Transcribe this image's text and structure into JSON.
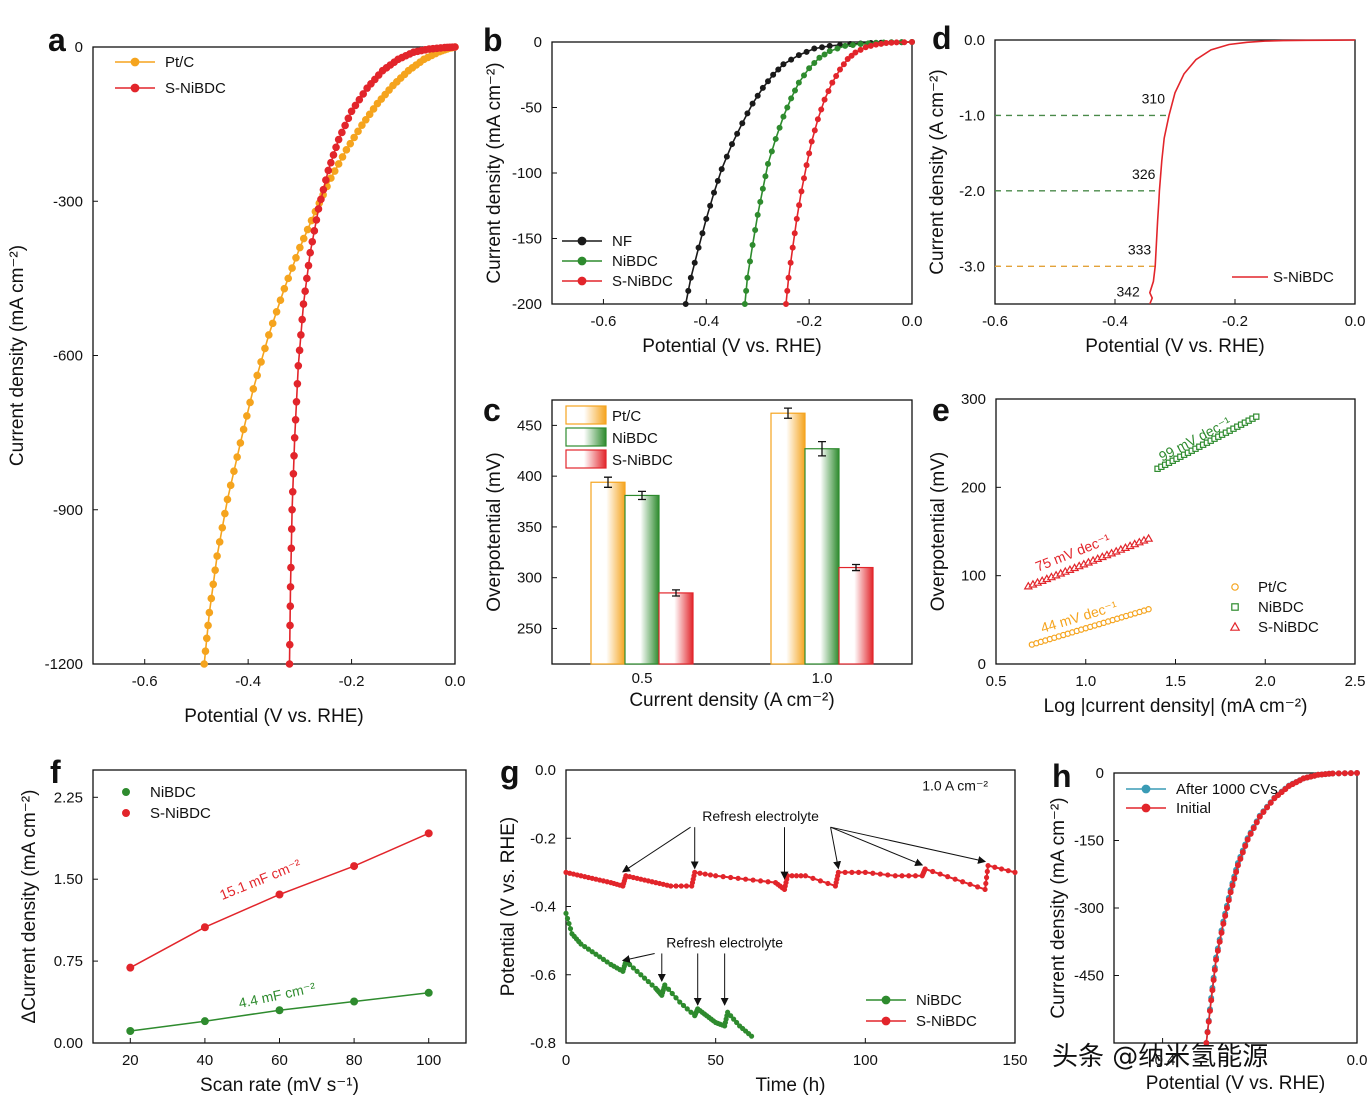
{
  "colors": {
    "ptc": "#f5a41e",
    "nibdc": "#2e8b2e",
    "snibdc": "#e2252b",
    "nf": "#1a1a1a",
    "after": "#3a9bb5",
    "axis": "#111111",
    "dash_green": "#4a8a4a",
    "dash_orange": "#e3a23a"
  },
  "watermark": "头条 @纳米氢能源",
  "chart_data": [
    {
      "id": "a",
      "label": "a",
      "type": "line",
      "xlabel": "Potential (V vs. RHE)",
      "ylabel": "Current density (mA cm⁻²)",
      "xlim": [
        -0.7,
        0.0
      ],
      "ylim": [
        -1200,
        0
      ],
      "xticks": [
        -0.6,
        -0.4,
        -0.2,
        0.0
      ],
      "xtick_labels": [
        "-0.6",
        "-0.4",
        "-0.2",
        "0.0"
      ],
      "yticks": [
        0,
        -300,
        -600,
        -900,
        -1200
      ],
      "ytick_labels": [
        "0",
        "-300",
        "-600",
        "-900",
        "-1200"
      ],
      "legend_position": "top-left",
      "series": [
        {
          "name": "Pt/C",
          "color_key": "ptc",
          "x": [
            -0.485,
            -0.475,
            -0.46,
            -0.44,
            -0.415,
            -0.39,
            -0.36,
            -0.33,
            -0.3,
            -0.27,
            -0.24,
            -0.21,
            -0.18,
            -0.15,
            -0.12,
            -0.09,
            -0.06,
            -0.03,
            -0.01,
            0.0
          ],
          "y": [
            -1200,
            -1100,
            -990,
            -880,
            -770,
            -665,
            -560,
            -470,
            -390,
            -320,
            -255,
            -200,
            -152,
            -110,
            -75,
            -46,
            -24,
            -9,
            -2,
            0
          ]
        },
        {
          "name": "S-NiBDC",
          "color_key": "snibdc",
          "x": [
            -0.32,
            -0.318,
            -0.315,
            -0.31,
            -0.303,
            -0.293,
            -0.28,
            -0.264,
            -0.245,
            -0.225,
            -0.2,
            -0.17,
            -0.14,
            -0.11,
            -0.08,
            -0.05,
            -0.02,
            0.0
          ],
          "y": [
            -1200,
            -1050,
            -900,
            -760,
            -620,
            -500,
            -400,
            -315,
            -240,
            -180,
            -125,
            -80,
            -46,
            -24,
            -10,
            -4,
            -1,
            0
          ]
        }
      ]
    },
    {
      "id": "b",
      "label": "b",
      "type": "line",
      "xlabel": "Potential (V vs. RHE)",
      "ylabel": "Current density (mA cm⁻²)",
      "xlim": [
        -0.7,
        0.0
      ],
      "ylim": [
        -200,
        0
      ],
      "xticks": [
        -0.6,
        -0.4,
        -0.2,
        0.0
      ],
      "xtick_labels": [
        "-0.6",
        "-0.4",
        "-0.2",
        "0.0"
      ],
      "yticks": [
        0,
        -50,
        -100,
        -150,
        -200
      ],
      "ytick_labels": [
        "0",
        "-50",
        "-100",
        "-150",
        "-200"
      ],
      "legend_position": "bottom-left",
      "series": [
        {
          "name": "NF",
          "color_key": "nf",
          "x": [
            -0.44,
            -0.43,
            -0.415,
            -0.4,
            -0.385,
            -0.37,
            -0.35,
            -0.33,
            -0.31,
            -0.29,
            -0.27,
            -0.25,
            -0.22,
            -0.19,
            -0.16,
            -0.12,
            -0.08,
            -0.04,
            0.0
          ],
          "y": [
            -200,
            -180,
            -157,
            -135,
            -115,
            -97,
            -78,
            -62,
            -47,
            -35,
            -25,
            -17,
            -10,
            -5,
            -3,
            -1.5,
            -0.8,
            -0.3,
            0
          ]
        },
        {
          "name": "NiBDC",
          "color_key": "nibdc",
          "x": [
            -0.325,
            -0.32,
            -0.31,
            -0.3,
            -0.29,
            -0.28,
            -0.265,
            -0.25,
            -0.235,
            -0.22,
            -0.2,
            -0.18,
            -0.16,
            -0.13,
            -0.1,
            -0.07,
            -0.04,
            0.0
          ],
          "y": [
            -200,
            -180,
            -155,
            -132,
            -112,
            -93,
            -74,
            -57,
            -43,
            -31,
            -20,
            -12,
            -7,
            -3,
            -1.5,
            -0.6,
            -0.2,
            0
          ]
        },
        {
          "name": "S-NiBDC",
          "color_key": "snibdc",
          "x": [
            -0.245,
            -0.24,
            -0.232,
            -0.224,
            -0.215,
            -0.205,
            -0.195,
            -0.183,
            -0.17,
            -0.155,
            -0.14,
            -0.125,
            -0.11,
            -0.09,
            -0.07,
            -0.05,
            -0.03,
            0.0
          ],
          "y": [
            -200,
            -180,
            -157,
            -135,
            -114,
            -94,
            -76,
            -59,
            -44,
            -31,
            -21,
            -13,
            -8,
            -4,
            -2,
            -0.8,
            -0.3,
            0
          ]
        }
      ]
    },
    {
      "id": "c",
      "label": "c",
      "type": "bar",
      "xlabel": "Current density (A cm⁻²)",
      "ylabel": "Overpotential (mV)",
      "ylim": [
        215,
        475
      ],
      "yticks": [
        250,
        300,
        350,
        400,
        450
      ],
      "ytick_labels": [
        "250",
        "300",
        "350",
        "400",
        "450"
      ],
      "categories": [
        "0.5",
        "1.0"
      ],
      "legend_position": "top-left",
      "series": [
        {
          "name": "Pt/C",
          "color_key": "ptc",
          "values": [
            394,
            462
          ],
          "errors": [
            5,
            5
          ]
        },
        {
          "name": "NiBDC",
          "color_key": "nibdc",
          "values": [
            381,
            427
          ],
          "errors": [
            4,
            7
          ]
        },
        {
          "name": "S-NiBDC",
          "color_key": "snibdc",
          "values": [
            285,
            310
          ],
          "errors": [
            3,
            3
          ]
        }
      ]
    },
    {
      "id": "d",
      "label": "d",
      "type": "line",
      "xlabel": "Potential (V vs. RHE)",
      "ylabel": "Current density (A cm⁻²)",
      "xlim": [
        -0.6,
        0.0
      ],
      "ylim": [
        -3.5,
        0.0
      ],
      "xticks": [
        -0.6,
        -0.4,
        -0.2,
        0.0
      ],
      "xtick_labels": [
        "-0.6",
        "-0.4",
        "-0.2",
        "0.0"
      ],
      "yticks": [
        0.0,
        -1.0,
        -2.0,
        -3.0
      ],
      "ytick_labels": [
        "0.0",
        "-1.0",
        "-2.0",
        "-3.0"
      ],
      "legend_position": "bottom-right",
      "guides": [
        {
          "y": -1.0,
          "x_end": -0.31,
          "label": "310",
          "color_key": "dash_green"
        },
        {
          "y": -2.0,
          "x_end": -0.326,
          "label": "326",
          "color_key": "dash_green"
        },
        {
          "y": -3.0,
          "x_end": -0.333,
          "label": "333",
          "color_key": "dash_orange"
        }
      ],
      "annotations": [
        {
          "text": "342",
          "x": -0.342,
          "y": -3.35
        }
      ],
      "series": [
        {
          "name": "S-NiBDC",
          "color_key": "snibdc",
          "x": [
            -0.342,
            -0.338,
            -0.342,
            -0.336,
            -0.333,
            -0.331,
            -0.329,
            -0.327,
            -0.326,
            -0.322,
            -0.318,
            -0.31,
            -0.3,
            -0.285,
            -0.265,
            -0.24,
            -0.21,
            -0.18,
            -0.15,
            -0.12,
            -0.08,
            -0.04,
            0.0
          ],
          "y": [
            -3.5,
            -3.42,
            -3.35,
            -3.2,
            -3.0,
            -2.7,
            -2.4,
            -2.15,
            -2.0,
            -1.6,
            -1.3,
            -1.0,
            -0.7,
            -0.45,
            -0.26,
            -0.13,
            -0.06,
            -0.03,
            -0.015,
            -0.008,
            -0.004,
            -0.002,
            0.0
          ]
        }
      ]
    },
    {
      "id": "e",
      "label": "e",
      "type": "scatter",
      "xlabel": "Log |current density| (mA cm⁻²)",
      "ylabel": "Overpotential (mV)",
      "xlim": [
        0.5,
        2.5
      ],
      "ylim": [
        0,
        300
      ],
      "xticks": [
        0.5,
        1.0,
        1.5,
        2.0,
        2.5
      ],
      "xtick_labels": [
        "0.5",
        "1.0",
        "1.5",
        "2.0",
        "2.5"
      ],
      "yticks": [
        0,
        100,
        200,
        300
      ],
      "ytick_labels": [
        "0",
        "100",
        "200",
        "300"
      ],
      "legend_position": "bottom-right",
      "series": [
        {
          "name": "Pt/C",
          "color_key": "ptc",
          "marker": "circle",
          "slope_label": "44 mV dec⁻¹",
          "x_range": [
            0.7,
            1.35
          ],
          "y_range": [
            22,
            62
          ]
        },
        {
          "name": "NiBDC",
          "color_key": "nibdc",
          "marker": "square",
          "slope_label": "99 mV dec⁻¹",
          "x_range": [
            1.4,
            1.95
          ],
          "y_range": [
            221,
            280
          ]
        },
        {
          "name": "S-NiBDC",
          "color_key": "snibdc",
          "marker": "triangle",
          "slope_label": "75 mV dec⁻¹",
          "x_range": [
            0.68,
            1.35
          ],
          "y_range": [
            88,
            142
          ]
        }
      ]
    },
    {
      "id": "f",
      "label": "f",
      "type": "scatter",
      "xlabel": "Scan rate (mV s⁻¹)",
      "ylabel": "ΔCurrent density (mA cm⁻²)",
      "xlim": [
        10,
        110
      ],
      "ylim": [
        0,
        2.5
      ],
      "xticks": [
        20,
        40,
        60,
        80,
        100
      ],
      "xtick_labels": [
        "20",
        "40",
        "60",
        "80",
        "100"
      ],
      "yticks": [
        0.0,
        0.75,
        1.5,
        2.25
      ],
      "ytick_labels": [
        "0.00",
        "0.75",
        "1.50",
        "2.25"
      ],
      "legend_position": "top-left",
      "series": [
        {
          "name": "NiBDC",
          "color_key": "nibdc",
          "slope_label": "4.4 mF cm⁻²",
          "x": [
            20,
            40,
            60,
            80,
            100
          ],
          "y": [
            0.11,
            0.2,
            0.3,
            0.38,
            0.46
          ]
        },
        {
          "name": "S-NiBDC",
          "color_key": "snibdc",
          "slope_label": "15.1 mF cm⁻²",
          "x": [
            20,
            40,
            60,
            80,
            100
          ],
          "y": [
            0.69,
            1.06,
            1.36,
            1.62,
            1.92
          ]
        }
      ]
    },
    {
      "id": "g",
      "label": "g",
      "type": "line",
      "xlabel": "Time (h)",
      "ylabel": "Potential (V vs. RHE)",
      "xlim": [
        0,
        150
      ],
      "ylim": [
        -0.8,
        0.0
      ],
      "xticks": [
        0,
        50,
        100,
        150
      ],
      "xtick_labels": [
        "0",
        "50",
        "100",
        "150"
      ],
      "yticks": [
        0.0,
        -0.2,
        -0.4,
        -0.6,
        -0.8
      ],
      "ytick_labels": [
        "0.0",
        "-0.2",
        "-0.4",
        "-0.6",
        "-0.8"
      ],
      "legend_position": "bottom-right",
      "annotations": [
        {
          "text": "1.0 A cm⁻²",
          "x": 130,
          "y": -0.06
        },
        {
          "text": "Refresh electrolyte",
          "x": 65,
          "y": -0.15,
          "arrow_targets": [
            [
              19,
              -0.31
            ],
            [
              43,
              -0.3
            ],
            [
              73,
              -0.33
            ],
            [
              91,
              -0.3
            ],
            [
              119,
              -0.29
            ],
            [
              140,
              -0.28
            ]
          ]
        },
        {
          "text": "Refresh electrolyte",
          "x": 53,
          "y": -0.52,
          "arrow_targets": [
            [
              19,
              -0.57
            ],
            [
              32,
              -0.63
            ],
            [
              44,
              -0.7
            ],
            [
              53,
              -0.7
            ]
          ]
        }
      ],
      "series": [
        {
          "name": "NiBDC",
          "color_key": "nibdc",
          "x": [
            0,
            2,
            5,
            10,
            15,
            19,
            20,
            25,
            30,
            32,
            33,
            38,
            43,
            44,
            47,
            50,
            53,
            54,
            58,
            62
          ],
          "y": [
            -0.42,
            -0.48,
            -0.51,
            -0.54,
            -0.57,
            -0.59,
            -0.56,
            -0.6,
            -0.64,
            -0.66,
            -0.63,
            -0.68,
            -0.72,
            -0.7,
            -0.72,
            -0.74,
            -0.75,
            -0.71,
            -0.75,
            -0.78
          ]
        },
        {
          "name": "S-NiBDC",
          "color_key": "snibdc",
          "x": [
            0,
            5,
            10,
            15,
            19,
            20,
            25,
            30,
            35,
            42,
            43,
            50,
            60,
            70,
            73,
            74,
            80,
            90,
            91,
            100,
            110,
            119,
            120,
            130,
            140,
            141,
            150
          ],
          "y": [
            -0.3,
            -0.31,
            -0.32,
            -0.33,
            -0.34,
            -0.31,
            -0.32,
            -0.33,
            -0.34,
            -0.34,
            -0.3,
            -0.31,
            -0.32,
            -0.33,
            -0.35,
            -0.31,
            -0.31,
            -0.34,
            -0.3,
            -0.3,
            -0.31,
            -0.31,
            -0.29,
            -0.32,
            -0.35,
            -0.28,
            -0.3
          ]
        }
      ]
    },
    {
      "id": "h",
      "label": "h",
      "type": "line",
      "xlabel": "Potential (V vs. RHE)",
      "ylabel": "Current density (mA cm⁻²)",
      "xlim": [
        -0.5,
        0.0
      ],
      "ylim": [
        -600,
        0
      ],
      "xticks": [
        -0.4,
        0.0
      ],
      "xtick_labels": [
        "-0.4",
        "0.0"
      ],
      "yticks": [
        0,
        -150,
        -300,
        -450
      ],
      "ytick_labels": [
        "0",
        "-150",
        "-300",
        "-450"
      ],
      "legend_position": "top-left",
      "series": [
        {
          "name": "After 1000 CVs",
          "color_key": "after",
          "x": [
            -0.31,
            -0.3,
            -0.29,
            -0.275,
            -0.26,
            -0.245,
            -0.225,
            -0.2,
            -0.17,
            -0.14,
            -0.11,
            -0.08,
            -0.05,
            0.0
          ],
          "y": [
            -600,
            -500,
            -410,
            -330,
            -260,
            -200,
            -145,
            -95,
            -55,
            -28,
            -12,
            -4,
            -1,
            0
          ]
        },
        {
          "name": "Initial",
          "color_key": "snibdc",
          "x": [
            -0.31,
            -0.3,
            -0.29,
            -0.275,
            -0.26,
            -0.245,
            -0.225,
            -0.2,
            -0.17,
            -0.14,
            -0.11,
            -0.08,
            -0.05,
            0.0
          ],
          "y": [
            -600,
            -505,
            -415,
            -335,
            -265,
            -205,
            -148,
            -97,
            -56,
            -29,
            -12,
            -4,
            -1,
            0
          ]
        }
      ]
    }
  ]
}
